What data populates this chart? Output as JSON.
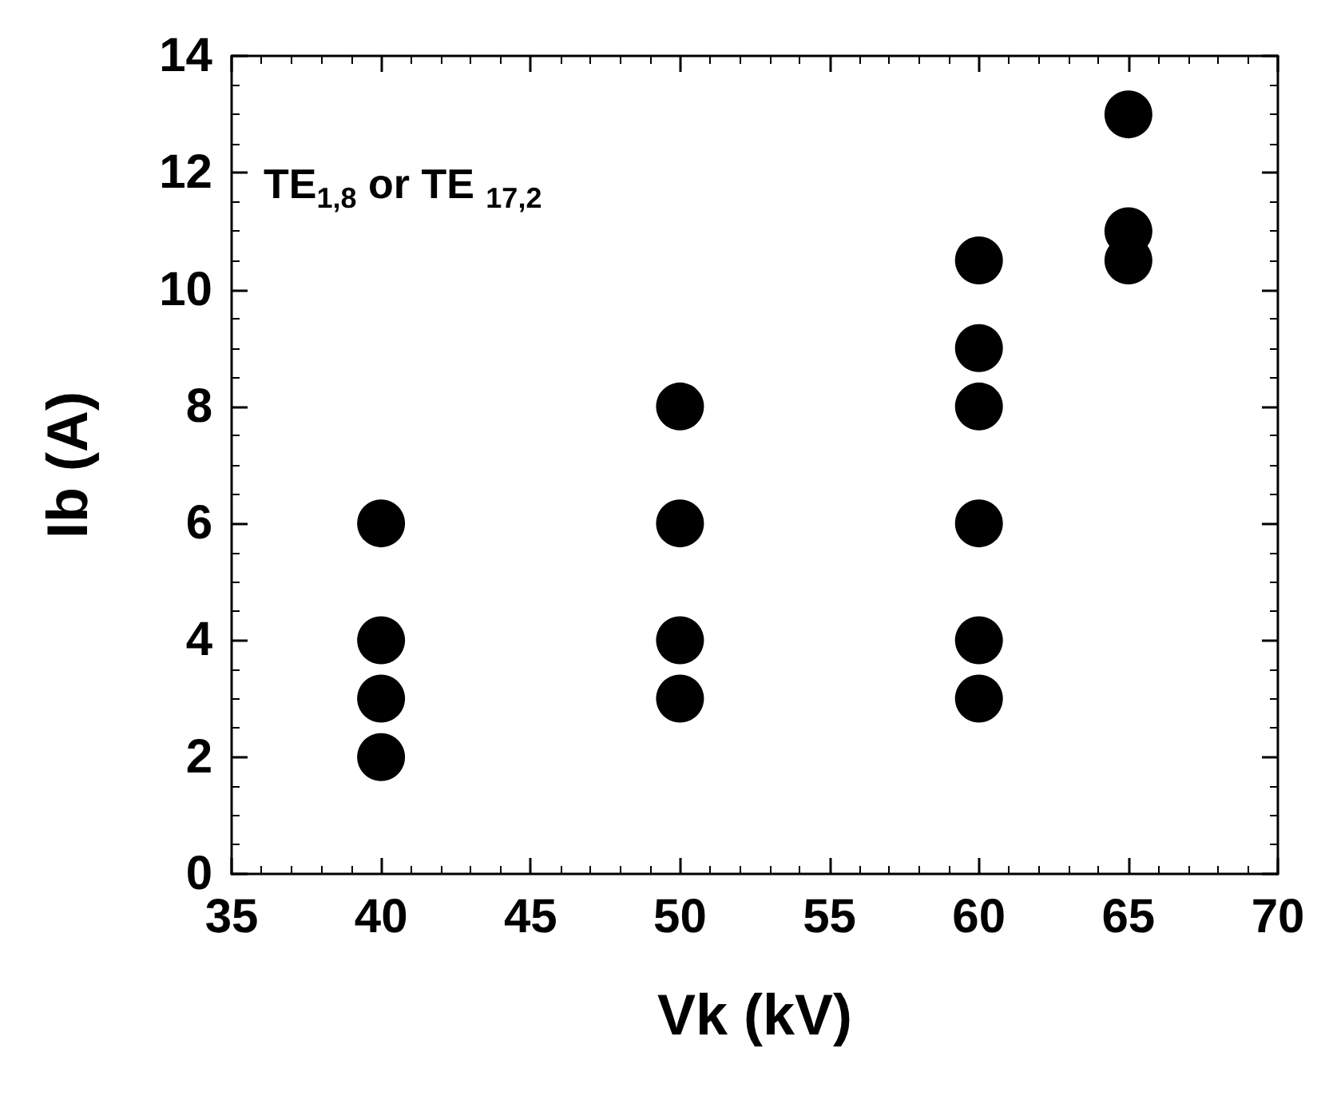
{
  "chart_data": {
    "type": "scatter",
    "xlabel": "Vk (kV)",
    "ylabel": "Ib (A)",
    "x": [
      40,
      40,
      40,
      40,
      50,
      50,
      50,
      50,
      60,
      60,
      60,
      60,
      60,
      60,
      65,
      65,
      65
    ],
    "values": [
      2,
      3,
      4,
      6,
      3,
      4,
      6,
      8,
      3,
      4,
      6,
      8,
      9,
      10.5,
      10.5,
      11,
      13
    ],
    "color": "#000000",
    "marker": "circle",
    "grid": false,
    "xlim": [
      35,
      70
    ],
    "xticks": [
      35,
      40,
      45,
      50,
      55,
      60,
      65,
      70
    ],
    "ylim": [
      0,
      14
    ],
    "yticks": [
      0,
      2,
      4,
      6,
      8,
      10,
      12,
      14
    ],
    "annotations": [
      "TE$_{1,8}$ or TE $_{17,2}$"
    ]
  }
}
